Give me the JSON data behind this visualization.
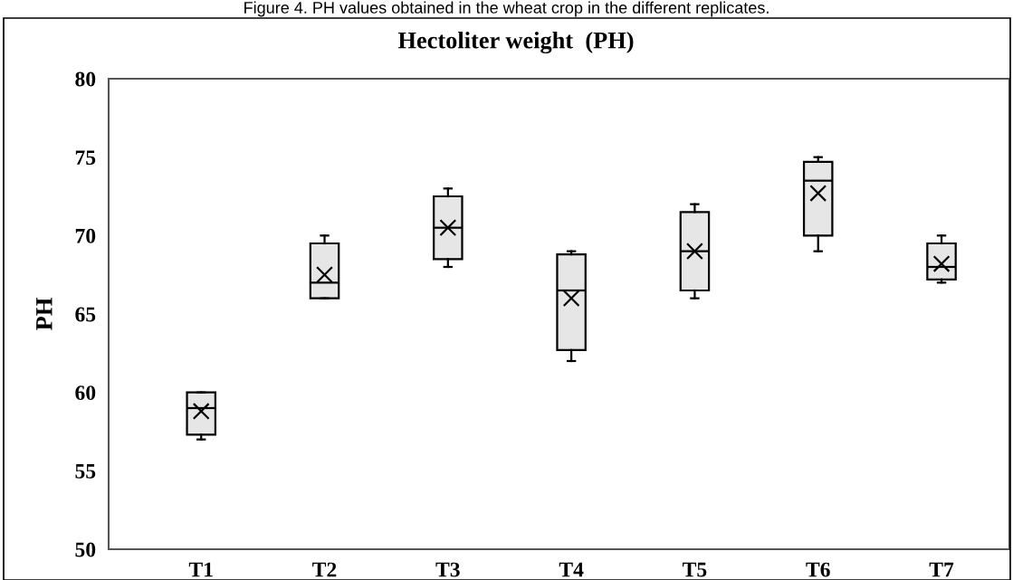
{
  "chart_data": {
    "type": "box",
    "title": "Hectoliter weight  (PH)",
    "ylabel": "PH",
    "annotations": [
      "Figure 4. PH values obtained in the wheat crop in the different replicates."
    ],
    "categories": [
      "T1",
      "T2",
      "T3",
      "T4",
      "T5",
      "T6",
      "T7"
    ],
    "boxes": [
      {
        "low": 57,
        "q1": 57.3,
        "median": 59,
        "q3": 60,
        "high": 60,
        "mean": 58.8
      },
      {
        "low": 66,
        "q1": 66,
        "median": 67,
        "q3": 69.5,
        "high": 70,
        "mean": 67.5
      },
      {
        "low": 68,
        "q1": 68.5,
        "median": 70.5,
        "q3": 72.5,
        "high": 73,
        "mean": 70.5
      },
      {
        "low": 62,
        "q1": 62.7,
        "median": 66.5,
        "q3": 68.8,
        "high": 69,
        "mean": 66
      },
      {
        "low": 66,
        "q1": 66.5,
        "median": 69,
        "q3": 71.5,
        "high": 72,
        "mean": 69
      },
      {
        "low": 69,
        "q1": 70,
        "median": 73.5,
        "q3": 74.7,
        "high": 75,
        "mean": 72.7
      },
      {
        "low": 67,
        "q1": 67.2,
        "median": 68,
        "q3": 69.5,
        "high": 70,
        "mean": 68.2
      }
    ],
    "color": "#e6e6e6",
    "marker": "cross",
    "ylim": [
      50,
      80
    ],
    "yticks": [
      50,
      55,
      60,
      65,
      70,
      75,
      80
    ],
    "grid": false
  }
}
